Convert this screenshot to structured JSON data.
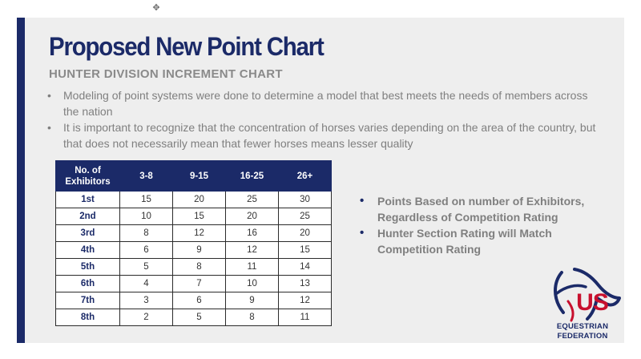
{
  "slide": {
    "title": "Proposed New Point Chart",
    "subtitle": "HUNTER DIVISION INCREMENT CHART",
    "bullets": [
      "Modeling of point systems were done to determine a model that best meets the needs of members across the nation",
      "It is important to recognize that the concentration of horses varies depending on the area of the country, but that does not necessarily mean that fewer horses means lesser quality"
    ]
  },
  "table": {
    "header_line1": "No. of",
    "header_line2": "Exhibitors",
    "columns": [
      "3-8",
      "9-15",
      "16-25",
      "26+"
    ],
    "rows": [
      {
        "place": "1st",
        "values": [
          "15",
          "20",
          "25",
          "30"
        ]
      },
      {
        "place": "2nd",
        "values": [
          "10",
          "15",
          "20",
          "25"
        ]
      },
      {
        "place": "3rd",
        "values": [
          "8",
          "12",
          "16",
          "20"
        ]
      },
      {
        "place": "4th",
        "values": [
          "6",
          "9",
          "12",
          "15"
        ]
      },
      {
        "place": "5th",
        "values": [
          "5",
          "8",
          "11",
          "14"
        ]
      },
      {
        "place": "6th",
        "values": [
          "4",
          "7",
          "10",
          "13"
        ]
      },
      {
        "place": "7th",
        "values": [
          "3",
          "6",
          "9",
          "12"
        ]
      },
      {
        "place": "8th",
        "values": [
          "2",
          "5",
          "8",
          "11"
        ]
      }
    ]
  },
  "right_bullets": [
    "Points Based on number of Exhibitors, Regardless of Competition Rating",
    "Hunter Section Rating will Match Competition Rating"
  ],
  "logo": {
    "us": "US",
    "line1": "EQUESTRIAN",
    "line2": "FEDERATION"
  },
  "icons": {
    "cursor": "move-cursor-icon",
    "bullet": "bullet-dot-icon"
  },
  "colors": {
    "navy": "#1b2a68",
    "red": "#c8102e",
    "gray_text": "#7f7f7f",
    "slide_bg": "#eeeeee"
  }
}
